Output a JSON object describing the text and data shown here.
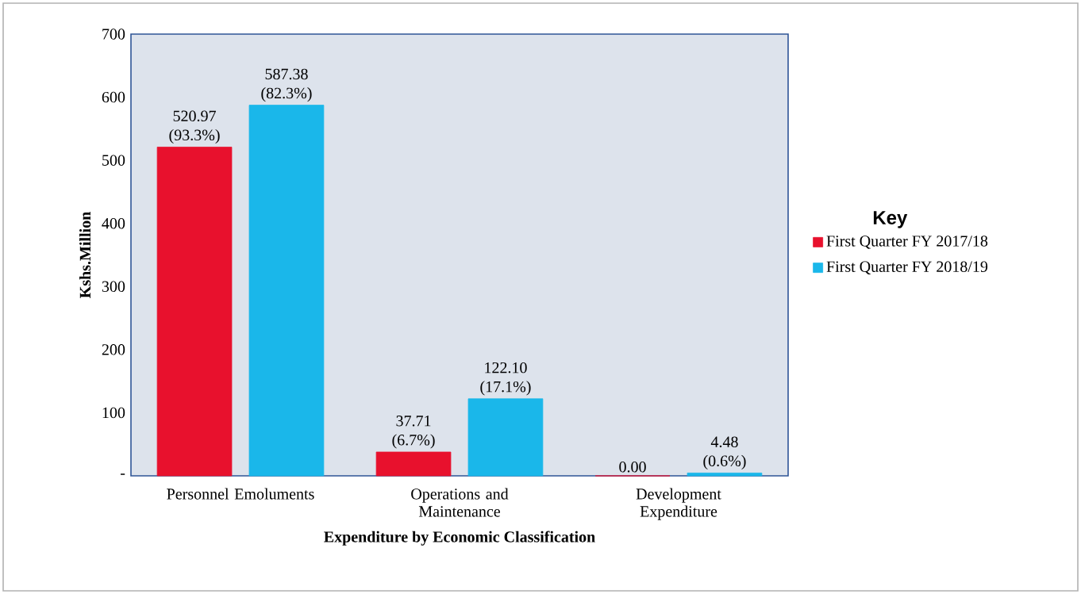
{
  "chart_data": {
    "type": "bar",
    "xlabel": "Expenditure by Economic Classification",
    "ylabel": "Kshs.Million",
    "legend_title": "Key",
    "categories": [
      "Personnel Emoluments",
      "Operations and Maintenance",
      "Development Expenditure"
    ],
    "series": [
      {
        "name": "First Quarter FY 2017/18",
        "color": "#e8112d",
        "values": [
          520.97,
          37.71,
          0.0
        ],
        "value_labels": [
          "520.97 (93.3%)",
          "37.71 (6.7%)",
          "0.00"
        ]
      },
      {
        "name": "First Quarter FY 2018/19",
        "color": "#1ab7ea",
        "values": [
          587.38,
          122.1,
          4.48
        ],
        "value_labels": [
          "587.38 (82.3%)",
          "122.10 (17.1%)",
          "4.48 (0.6%)"
        ]
      }
    ],
    "ylim": [
      0,
      700
    ],
    "yticks": [
      {
        "value": 0,
        "label": "-"
      },
      100,
      200,
      300,
      400,
      500,
      600,
      700
    ],
    "legend": "right",
    "grid": false
  }
}
